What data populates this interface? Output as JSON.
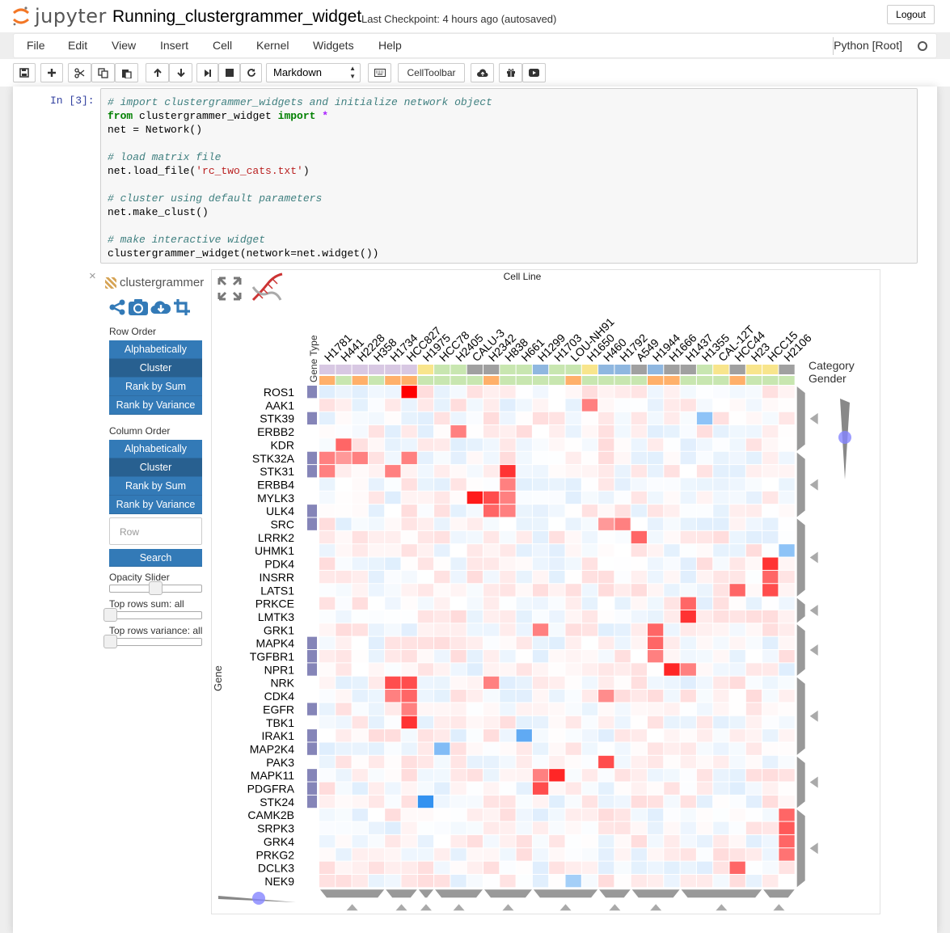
{
  "app": {
    "logo_text": "jupyter",
    "notebook_name": "Running_clustergrammer_widget",
    "checkpoint": "Last Checkpoint: 4 hours ago (autosaved)",
    "logout_label": "Logout"
  },
  "menu": {
    "items": [
      "File",
      "Edit",
      "View",
      "Insert",
      "Cell",
      "Kernel",
      "Widgets",
      "Help"
    ],
    "kernel_name": "Python [Root]"
  },
  "toolbar": {
    "cell_type": "Markdown",
    "celltoolbar_label": "CellToolbar",
    "icons": [
      "save-icon",
      "plus-icon",
      "cut-icon",
      "copy-icon",
      "paste-icon",
      "arrow-up-icon",
      "arrow-down-icon",
      "step-forward-icon",
      "stop-icon",
      "refresh-icon",
      "keyboard-icon",
      "cloud-upload-icon",
      "gift-icon",
      "youtube-icon"
    ]
  },
  "cell": {
    "prompt": "In [3]:",
    "lines": [
      {
        "parts": [
          [
            "cm",
            "# import clustergrammer_widgets and initialize network object"
          ]
        ]
      },
      {
        "parts": [
          [
            "kw",
            "from"
          ],
          [
            "",
            " clustergrammer_widget "
          ],
          [
            "kw",
            "import"
          ],
          [
            "",
            " "
          ],
          [
            "op",
            "*"
          ]
        ]
      },
      {
        "parts": [
          [
            "",
            "net = Network()"
          ]
        ]
      },
      {
        "parts": [
          [
            "",
            ""
          ]
        ]
      },
      {
        "parts": [
          [
            "cm",
            "# load matrix file"
          ]
        ]
      },
      {
        "parts": [
          [
            "",
            "net.load_file("
          ],
          [
            "st",
            "'rc_two_cats.txt'"
          ],
          [
            "",
            ")"
          ]
        ]
      },
      {
        "parts": [
          [
            "",
            ""
          ]
        ]
      },
      {
        "parts": [
          [
            "cm",
            "# cluster using default parameters"
          ]
        ]
      },
      {
        "parts": [
          [
            "",
            "net.make_clust()"
          ]
        ]
      },
      {
        "parts": [
          [
            "",
            ""
          ]
        ]
      },
      {
        "parts": [
          [
            "cm",
            "# make interactive widget"
          ]
        ]
      },
      {
        "parts": [
          [
            "",
            "clustergrammer_widget(network=net.widget())"
          ]
        ]
      }
    ]
  },
  "widget": {
    "close_symbol": "×",
    "logo_text": "clustergrammer",
    "row_order_label": "Row Order",
    "column_order_label": "Column Order",
    "order_buttons": [
      "Alphabetically",
      "Cluster",
      "Rank by Sum",
      "Rank by Variance"
    ],
    "active_order": "Cluster",
    "row_search_placeholder": "Row",
    "search_label": "Search",
    "opacity_label": "Opacity Slider",
    "top_rows_sum_label": "Top rows sum: all",
    "top_rows_variance_label": "Top rows variance: all",
    "colors": {
      "button": "#337ab7",
      "button_active": "#286090",
      "up": "#ff0000",
      "down": "#1c86ee"
    }
  },
  "chart_data": {
    "type": "heatmap",
    "title": "Cell Line",
    "xlabel": "Cell Line",
    "ylabel": "Gene",
    "row_category_label": "Gene Type",
    "column_category_labels": [
      "Category",
      "Gender"
    ],
    "columns": [
      "H1781",
      "H441",
      "H2228",
      "H358",
      "H1734",
      "HCC827",
      "H1975",
      "HCC78",
      "H2405",
      "CALU-3",
      "H2342",
      "H838",
      "H661",
      "H1299",
      "H1703",
      "LOU-NH91",
      "H1650",
      "H460",
      "H1792",
      "A549",
      "H1944",
      "H1666",
      "H1437",
      "H1355",
      "CAL-12T",
      "HCC44",
      "H23",
      "HCC15",
      "H2106"
    ],
    "rows": [
      "ROS1",
      "AAK1",
      "STK39",
      "ERBB2",
      "KDR",
      "STK32A",
      "STK31",
      "ERBB4",
      "MYLK3",
      "ULK4",
      "SRC",
      "LRRK2",
      "UHMK1",
      "PDK4",
      "INSRR",
      "LATS1",
      "PRKCE",
      "LMTK3",
      "GRK1",
      "MAPK4",
      "TGFBR1",
      "NPR1",
      "NRK",
      "CDK4",
      "EGFR",
      "TBK1",
      "IRAK1",
      "MAP2K4",
      "PAK3",
      "MAPK11",
      "PDGFRA",
      "STK24",
      "CAMK2B",
      "SRPK3",
      "GRK4",
      "PRKG2",
      "DCLK3",
      "NEK9"
    ],
    "row_category_colors": [
      "#8585b8",
      "#ffffff",
      "#8585b8",
      "#ffffff",
      "#ffffff",
      "#8585b8",
      "#8585b8",
      "#ffffff",
      "#ffffff",
      "#8585b8",
      "#8585b8",
      "#ffffff",
      "#ffffff",
      "#ffffff",
      "#ffffff",
      "#ffffff",
      "#ffffff",
      "#ffffff",
      "#ffffff",
      "#8585b8",
      "#8585b8",
      "#8585b8",
      "#ffffff",
      "#ffffff",
      "#8585b8",
      "#ffffff",
      "#8585b8",
      "#8585b8",
      "#ffffff",
      "#8585b8",
      "#8585b8",
      "#8585b8",
      "#ffffff",
      "#ffffff",
      "#ffffff",
      "#ffffff",
      "#ffffff",
      "#ffffff"
    ],
    "column_category_colors": [
      "#d8c8e3",
      "#d8c8e3",
      "#d8c8e3",
      "#d8c8e3",
      "#d8c8e3",
      "#d8c8e3",
      "#f8e58c",
      "#c8e6b0",
      "#c8e6b0",
      "#a0a0a0",
      "#a0a0a0",
      "#c8e6b0",
      "#c8e6b0",
      "#8fb7e0",
      "#c8e6b0",
      "#c8e6b0",
      "#f8e58c",
      "#8fb7e0",
      "#8fb7e0",
      "#a0a0a0",
      "#8fb7e0",
      "#a0a0a0",
      "#a0a0a0",
      "#c8e6b0",
      "#f8e58c",
      "#a0a0a0",
      "#f8e58c",
      "#f8e58c",
      "#a0a0a0"
    ],
    "column_gender_colors": [
      "#ffb06a",
      "#c8e6b0",
      "#ffb06a",
      "#c8e6b0",
      "#ffb06a",
      "#ffb06a",
      "#c8e6b0",
      "#c8e6b0",
      "#c8e6b0",
      "#c8e6b0",
      "#ffb06a",
      "#c8e6b0",
      "#c8e6b0",
      "#c8e6b0",
      "#c8e6b0",
      "#ffb06a",
      "#c8e6b0",
      "#c8e6b0",
      "#c8e6b0",
      "#c8e6b0",
      "#ffb06a",
      "#ffb06a",
      "#c8e6b0",
      "#c8e6b0",
      "#c8e6b0",
      "#ffb06a",
      "#c8e6b0",
      "#c8e6b0",
      "#c8e6b0"
    ],
    "value_range": [
      -1,
      1
    ],
    "strong_values": [
      {
        "row": "ROS1",
        "column": "HCC827",
        "value": 1.0
      },
      {
        "row": "AAK1",
        "column": "H1650",
        "value": 0.5
      },
      {
        "row": "STK39",
        "column": "H1355",
        "value": -0.5
      },
      {
        "row": "ERBB2",
        "column": "H2405",
        "value": 0.5
      },
      {
        "row": "KDR",
        "column": "H441",
        "value": 0.6
      },
      {
        "row": "STK32A",
        "column": "H1781",
        "value": 0.5
      },
      {
        "row": "STK32A",
        "column": "H441",
        "value": 0.4
      },
      {
        "row": "STK32A",
        "column": "H2228",
        "value": 0.5
      },
      {
        "row": "STK32A",
        "column": "HCC827",
        "value": 0.5
      },
      {
        "row": "STK31",
        "column": "H1781",
        "value": 0.5
      },
      {
        "row": "STK31",
        "column": "H1734",
        "value": 0.5
      },
      {
        "row": "STK31",
        "column": "H838",
        "value": 0.8
      },
      {
        "row": "ERBB4",
        "column": "H838",
        "value": 0.5
      },
      {
        "row": "MYLK3",
        "column": "CALU-3",
        "value": 0.9
      },
      {
        "row": "MYLK3",
        "column": "H2342",
        "value": 0.7
      },
      {
        "row": "MYLK3",
        "column": "H838",
        "value": 0.5
      },
      {
        "row": "ULK4",
        "column": "H2342",
        "value": 0.6
      },
      {
        "row": "ULK4",
        "column": "H838",
        "value": 0.5
      },
      {
        "row": "SRC",
        "column": "H460",
        "value": 0.4
      },
      {
        "row": "SRC",
        "column": "H1792",
        "value": 0.5
      },
      {
        "row": "LRRK2",
        "column": "A549",
        "value": 0.6
      },
      {
        "row": "UHMK1",
        "column": "H2106",
        "value": -0.5
      },
      {
        "row": "PDK4",
        "column": "HCC15",
        "value": 0.8
      },
      {
        "row": "INSRR",
        "column": "HCC15",
        "value": 0.6
      },
      {
        "row": "LATS1",
        "column": "HCC44",
        "value": 0.6
      },
      {
        "row": "LATS1",
        "column": "HCC15",
        "value": 0.7
      },
      {
        "row": "PRKCE",
        "column": "H1437",
        "value": 0.6
      },
      {
        "row": "LMTK3",
        "column": "H1437",
        "value": 0.8
      },
      {
        "row": "GRK1",
        "column": "H1299",
        "value": 0.5
      },
      {
        "row": "GRK1",
        "column": "H1944",
        "value": 0.6
      },
      {
        "row": "MAPK4",
        "column": "H1944",
        "value": 0.6
      },
      {
        "row": "TGFBR1",
        "column": "H1944",
        "value": 0.5
      },
      {
        "row": "NPR1",
        "column": "H1666",
        "value": 0.85
      },
      {
        "row": "NPR1",
        "column": "H1437",
        "value": 0.5
      },
      {
        "row": "NRK",
        "column": "H1734",
        "value": 0.7
      },
      {
        "row": "NRK",
        "column": "HCC827",
        "value": 0.7
      },
      {
        "row": "NRK",
        "column": "H2342",
        "value": 0.5
      },
      {
        "row": "CDK4",
        "column": "H1734",
        "value": 0.5
      },
      {
        "row": "CDK4",
        "column": "HCC827",
        "value": 0.6
      },
      {
        "row": "CDK4",
        "column": "H460",
        "value": 0.45
      },
      {
        "row": "EGFR",
        "column": "HCC827",
        "value": 0.5
      },
      {
        "row": "TBK1",
        "column": "HCC827",
        "value": 0.8
      },
      {
        "row": "IRAK1",
        "column": "H661",
        "value": -0.7
      },
      {
        "row": "MAP2K4",
        "column": "HCC78",
        "value": -0.55
      },
      {
        "row": "PAK3",
        "column": "H460",
        "value": 0.7
      },
      {
        "row": "MAPK11",
        "column": "H1703",
        "value": 0.85
      },
      {
        "row": "MAPK11",
        "column": "H1299",
        "value": 0.5
      },
      {
        "row": "PDGFRA",
        "column": "H1299",
        "value": 0.7
      },
      {
        "row": "STK24",
        "column": "H1975",
        "value": -0.9
      },
      {
        "row": "CAMK2B",
        "column": "H2106",
        "value": 0.6
      },
      {
        "row": "SRPK3",
        "column": "H2106",
        "value": 0.65
      },
      {
        "row": "GRK4",
        "column": "H2106",
        "value": 0.6
      },
      {
        "row": "PRKG2",
        "column": "H2106",
        "value": 0.55
      },
      {
        "row": "DCLK3",
        "column": "HCC44",
        "value": 0.6
      },
      {
        "row": "NEK9",
        "column": "LOU-NH91",
        "value": -0.4
      }
    ]
  }
}
